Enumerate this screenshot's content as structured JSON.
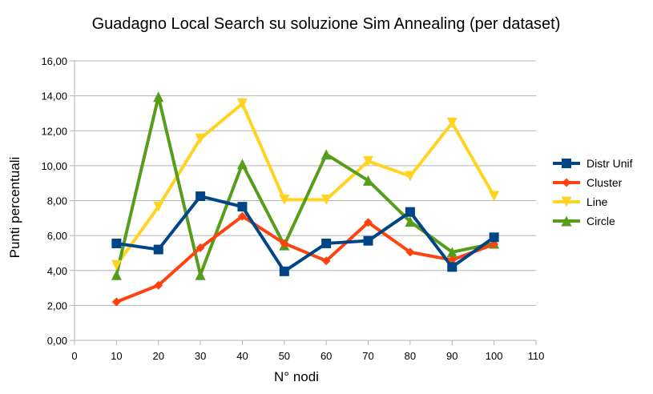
{
  "chart_data": {
    "type": "line",
    "title": "Guadagno Local Search su soluzione Sim Annealing (per dataset)",
    "xlabel": "N° nodi",
    "ylabel": "Punti percentuali",
    "xlim": [
      0,
      110
    ],
    "ylim": [
      0,
      16
    ],
    "x_ticks": [
      0,
      10,
      20,
      30,
      40,
      50,
      60,
      70,
      80,
      90,
      100,
      110
    ],
    "y_ticks": [
      "0,00",
      "2,00",
      "4,00",
      "6,00",
      "8,00",
      "10,00",
      "12,00",
      "14,00",
      "16,00"
    ],
    "y_tick_values": [
      0,
      2,
      4,
      6,
      8,
      10,
      12,
      14,
      16
    ],
    "grid": "horizontal",
    "legend_position": "right",
    "x": [
      10,
      20,
      30,
      40,
      50,
      60,
      70,
      80,
      90,
      100
    ],
    "series": [
      {
        "name": "Distr Unif",
        "color": "#004586",
        "marker": "square",
        "values": [
          5.55,
          5.2,
          8.25,
          7.65,
          3.95,
          5.55,
          5.7,
          7.35,
          4.2,
          5.9
        ]
      },
      {
        "name": "Cluster",
        "color": "#ff420e",
        "marker": "diamond",
        "values": [
          2.2,
          3.15,
          5.3,
          7.1,
          5.55,
          4.55,
          6.75,
          5.05,
          4.6,
          5.5
        ]
      },
      {
        "name": "Line",
        "color": "#ffd320",
        "marker": "triangle-down",
        "values": [
          4.3,
          7.65,
          11.55,
          13.55,
          8.05,
          8.05,
          10.25,
          9.4,
          12.45,
          8.25
        ]
      },
      {
        "name": "Circle",
        "color": "#579d1c",
        "marker": "triangle-up",
        "values": [
          3.75,
          13.95,
          3.75,
          10.1,
          5.45,
          10.65,
          9.15,
          6.8,
          5.05,
          5.55
        ]
      }
    ]
  }
}
